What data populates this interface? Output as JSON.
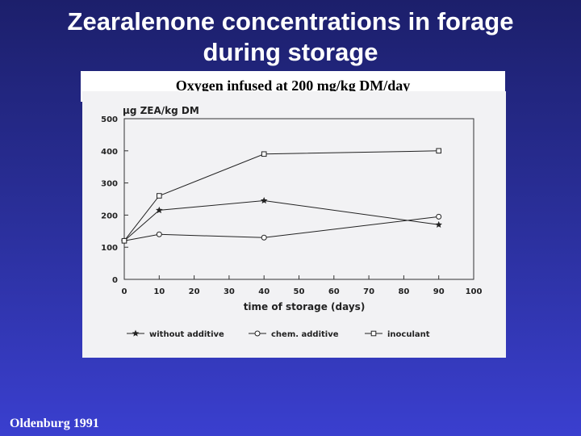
{
  "slide": {
    "title_line1": "Zearalenone concentrations in forage",
    "title_line2": "during storage",
    "subtitle": "Oxygen infused at 200 mg/kg DM/day",
    "credit": "Oldenburg 1991"
  },
  "chart_data": {
    "type": "line",
    "title": "",
    "ylabel": "μg ZEA/kg DM",
    "xlabel": "time of storage (days)",
    "xlim": [
      0,
      100
    ],
    "ylim": [
      0,
      500
    ],
    "xticks": [
      0,
      10,
      20,
      30,
      40,
      50,
      60,
      70,
      80,
      90,
      100
    ],
    "yticks": [
      0,
      100,
      200,
      300,
      400,
      500
    ],
    "grid": false,
    "legend_position": "bottom",
    "series": [
      {
        "name": "without additive",
        "marker": "star",
        "x": [
          0,
          10,
          40,
          90
        ],
        "y": [
          120,
          215,
          245,
          170
        ]
      },
      {
        "name": "chem. additive",
        "marker": "circle",
        "x": [
          0,
          10,
          40,
          90
        ],
        "y": [
          120,
          140,
          130,
          195
        ]
      },
      {
        "name": "inoculant",
        "marker": "square",
        "x": [
          0,
          10,
          40,
          90
        ],
        "y": [
          120,
          260,
          390,
          400
        ]
      }
    ]
  }
}
